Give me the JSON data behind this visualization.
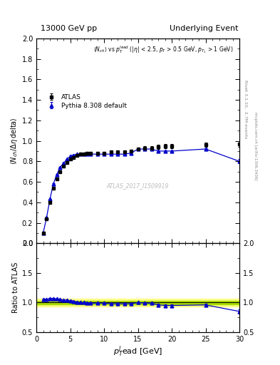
{
  "title_left": "13000 GeV pp",
  "title_right": "Underlying Event",
  "annotation": "ATLAS_2017_I1509919",
  "rivet_label": "Rivet 3.1.10,  2.7M events",
  "mcplots_label": "mcplots.cern.ch [arXiv:1306.3436]",
  "plot_label_main": "<N_{ch}> vs p_T^{lead} (|#eta| < 2.5, p_T > 0.5 GeV, p_{T_1} > 1 GeV)",
  "ylabel_main": "<N_{ch} / #Delta#eta delta>",
  "ylabel_ratio": "Ratio to ATLAS",
  "xlabel": "p_T^lead [GeV]",
  "ylim_main": [
    0.0,
    2.0
  ],
  "ylim_ratio": [
    0.5,
    2.0
  ],
  "xlim": [
    0,
    30
  ],
  "yticks_main": [
    0.0,
    0.2,
    0.4,
    0.6,
    0.8,
    1.0,
    1.2,
    1.4,
    1.6,
    1.8,
    2.0
  ],
  "yticks_ratio": [
    0.5,
    1.0,
    1.5,
    2.0
  ],
  "xticks": [
    0,
    5,
    10,
    15,
    20,
    25,
    30
  ],
  "atlas_x": [
    1.0,
    1.5,
    2.0,
    2.5,
    3.0,
    3.5,
    4.0,
    4.5,
    5.0,
    5.5,
    6.0,
    6.5,
    7.0,
    7.5,
    8.0,
    9.0,
    10.0,
    11.0,
    12.0,
    13.0,
    14.0,
    15.0,
    16.0,
    17.0,
    18.0,
    19.0,
    20.0,
    25.0,
    30.0
  ],
  "atlas_y": [
    0.1,
    0.24,
    0.4,
    0.54,
    0.63,
    0.7,
    0.75,
    0.79,
    0.82,
    0.84,
    0.86,
    0.87,
    0.87,
    0.88,
    0.88,
    0.88,
    0.88,
    0.89,
    0.89,
    0.89,
    0.9,
    0.92,
    0.93,
    0.93,
    0.94,
    0.95,
    0.95,
    0.96,
    0.97
  ],
  "atlas_yerr": [
    0.01,
    0.01,
    0.01,
    0.01,
    0.01,
    0.01,
    0.01,
    0.01,
    0.01,
    0.01,
    0.01,
    0.01,
    0.01,
    0.01,
    0.01,
    0.01,
    0.01,
    0.01,
    0.01,
    0.01,
    0.01,
    0.01,
    0.02,
    0.02,
    0.02,
    0.02,
    0.02,
    0.02,
    0.03
  ],
  "pythia_x": [
    1.0,
    1.5,
    2.0,
    2.5,
    3.0,
    3.5,
    4.0,
    4.5,
    5.0,
    5.5,
    6.0,
    6.5,
    7.0,
    7.5,
    8.0,
    9.0,
    10.0,
    11.0,
    12.0,
    13.0,
    14.0,
    15.0,
    16.0,
    17.0,
    18.0,
    19.0,
    20.0,
    25.0,
    30.0
  ],
  "pythia_y": [
    0.1,
    0.25,
    0.43,
    0.58,
    0.67,
    0.74,
    0.78,
    0.82,
    0.85,
    0.86,
    0.87,
    0.87,
    0.87,
    0.87,
    0.87,
    0.87,
    0.87,
    0.87,
    0.87,
    0.87,
    0.88,
    0.92,
    0.92,
    0.92,
    0.9,
    0.9,
    0.9,
    0.92,
    0.8
  ],
  "pythia_yerr": [
    0.005,
    0.005,
    0.005,
    0.005,
    0.005,
    0.005,
    0.005,
    0.005,
    0.005,
    0.005,
    0.005,
    0.005,
    0.005,
    0.005,
    0.005,
    0.005,
    0.005,
    0.005,
    0.005,
    0.005,
    0.005,
    0.005,
    0.005,
    0.005,
    0.005,
    0.005,
    0.005,
    0.01,
    0.02
  ],
  "ratio_y": [
    1.05,
    1.05,
    1.07,
    1.07,
    1.06,
    1.05,
    1.04,
    1.04,
    1.03,
    1.02,
    1.01,
    1.0,
    1.0,
    0.99,
    0.99,
    0.99,
    0.99,
    0.98,
    0.98,
    0.98,
    0.98,
    1.0,
    0.99,
    0.99,
    0.96,
    0.95,
    0.95,
    0.96,
    0.85
  ],
  "ratio_yerr": [
    0.01,
    0.01,
    0.01,
    0.01,
    0.01,
    0.01,
    0.01,
    0.01,
    0.01,
    0.01,
    0.01,
    0.01,
    0.01,
    0.01,
    0.01,
    0.01,
    0.01,
    0.01,
    0.01,
    0.01,
    0.01,
    0.01,
    0.01,
    0.01,
    0.02,
    0.02,
    0.02,
    0.02,
    0.04
  ],
  "atlas_color": "black",
  "pythia_color": "#0000cc",
  "band_color_green": "#aadd00",
  "band_color_yellow": "#ffff88",
  "band_green_lo": 0.97,
  "band_green_hi": 1.03,
  "band_yellow_lo": 0.93,
  "band_yellow_hi": 1.07,
  "bg_color": "#ffffff"
}
